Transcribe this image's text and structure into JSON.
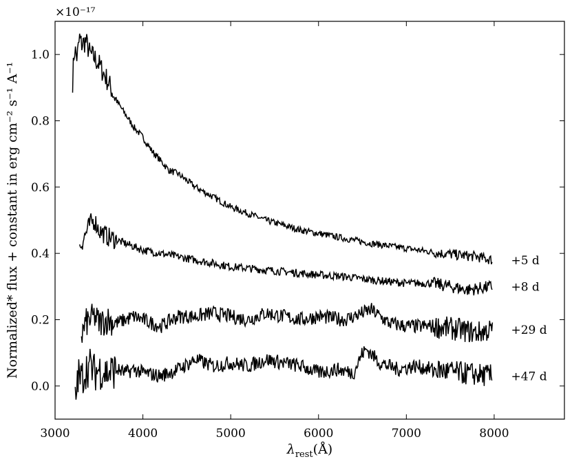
{
  "chart_data": {
    "type": "line",
    "title": "",
    "xlabel": "λrest(Å)",
    "xlabel_main": "λ",
    "xlabel_sub": "rest",
    "xlabel_unit": "(Å)",
    "ylabel": "Normalized* flux + constant in erg cm⁻² s⁻¹ A⁻¹",
    "y_multiplier": "×10⁻¹⁷",
    "xlim": [
      3000,
      8800
    ],
    "ylim": [
      -0.1,
      1.1
    ],
    "xticks": [
      3000,
      4000,
      5000,
      6000,
      7000,
      8000
    ],
    "yticks": [
      0.0,
      0.2,
      0.4,
      0.6,
      0.8,
      1.0
    ],
    "xtick_labels": [
      "3000",
      "4000",
      "5000",
      "6000",
      "7000",
      "8000"
    ],
    "ytick_labels": [
      "0.0",
      "0.2",
      "0.4",
      "0.6",
      "0.8",
      "1.0"
    ],
    "grid": false,
    "line_color": "#000000",
    "series": [
      {
        "name": "+5 d",
        "x": [
          3200,
          3220,
          3250,
          3280,
          3300,
          3350,
          3400,
          3450,
          3500,
          3600,
          3700,
          3800,
          3900,
          4000,
          4100,
          4200,
          4300,
          4400,
          4500,
          4600,
          4800,
          5000,
          5200,
          5400,
          5600,
          5800,
          6000,
          6300,
          6600,
          7000,
          7400,
          7800,
          7980
        ],
        "y": [
          0.92,
          1.02,
          0.99,
          1.05,
          1.03,
          1.04,
          1.0,
          0.99,
          0.97,
          0.92,
          0.86,
          0.82,
          0.78,
          0.75,
          0.71,
          0.68,
          0.65,
          0.64,
          0.62,
          0.6,
          0.57,
          0.54,
          0.52,
          0.5,
          0.485,
          0.47,
          0.46,
          0.445,
          0.43,
          0.415,
          0.4,
          0.39,
          0.38
        ]
      },
      {
        "name": "+8 d",
        "x": [
          3280,
          3300,
          3350,
          3400,
          3450,
          3500,
          3600,
          3700,
          3800,
          3900,
          4000,
          4200,
          4400,
          4600,
          4800,
          5000,
          5200,
          5400,
          5600,
          5800,
          6000,
          6300,
          6600,
          7000,
          7300,
          7500,
          7700,
          7980
        ],
        "y": [
          0.42,
          0.43,
          0.46,
          0.49,
          0.5,
          0.47,
          0.45,
          0.44,
          0.43,
          0.42,
          0.41,
          0.4,
          0.39,
          0.38,
          0.37,
          0.36,
          0.355,
          0.35,
          0.345,
          0.34,
          0.335,
          0.33,
          0.32,
          0.31,
          0.31,
          0.3,
          0.29,
          0.3
        ]
      },
      {
        "name": "+29 d",
        "x": [
          3300,
          3350,
          3400,
          3450,
          3500,
          3600,
          3700,
          3800,
          3900,
          4000,
          4200,
          4400,
          4600,
          4800,
          5000,
          5200,
          5400,
          5600,
          5800,
          6000,
          6300,
          6500,
          6600,
          6800,
          7000,
          7300,
          7600,
          7800,
          7980
        ],
        "y": [
          0.15,
          0.19,
          0.2,
          0.21,
          0.19,
          0.2,
          0.19,
          0.2,
          0.21,
          0.2,
          0.18,
          0.21,
          0.21,
          0.22,
          0.21,
          0.2,
          0.22,
          0.21,
          0.2,
          0.21,
          0.2,
          0.22,
          0.23,
          0.19,
          0.18,
          0.18,
          0.17,
          0.16,
          0.17
        ]
      },
      {
        "name": "+47 d",
        "x": [
          3230,
          3260,
          3300,
          3350,
          3400,
          3450,
          3500,
          3600,
          3700,
          3800,
          3900,
          4000,
          4200,
          4400,
          4600,
          4700,
          4800,
          5000,
          5200,
          5400,
          5600,
          5800,
          6000,
          6200,
          6400,
          6500,
          6550,
          6700,
          6900,
          7100,
          7300,
          7600,
          7980
        ],
        "y": [
          -0.05,
          0.03,
          0.02,
          0.05,
          0.06,
          0.04,
          0.05,
          0.04,
          0.05,
          0.04,
          0.05,
          0.04,
          0.03,
          0.05,
          0.08,
          0.07,
          0.06,
          0.07,
          0.06,
          0.08,
          0.07,
          0.06,
          0.04,
          0.05,
          0.04,
          0.1,
          0.11,
          0.07,
          0.05,
          0.06,
          0.05,
          0.04,
          0.03
        ]
      }
    ]
  }
}
